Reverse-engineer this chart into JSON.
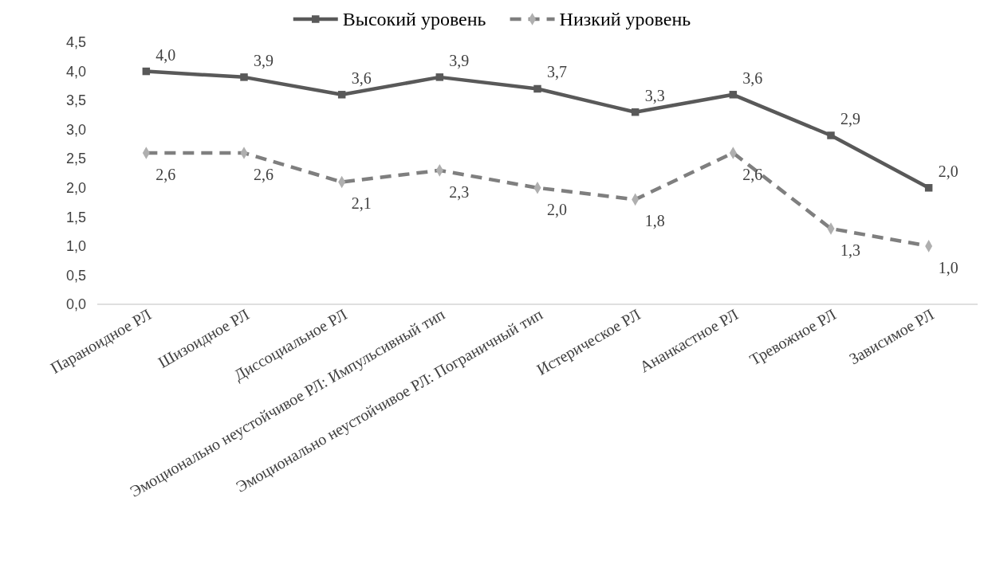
{
  "chart_data": {
    "type": "line",
    "categories": [
      "Параноидное РЛ",
      "Шизоидное РЛ",
      "Диссоциальное  РЛ",
      "Эмоционально неустойчивое РЛ: Импульсивный тип",
      "Эмоционально неустойчивое РЛ: Пограничный тип",
      "Истерическое РЛ",
      "Ананкастное РЛ",
      "Тревожное РЛ",
      "Зависимое РЛ"
    ],
    "series": [
      {
        "name": "Высокий уровень",
        "color": "#595959",
        "marker": "square",
        "line_style": "solid",
        "values": [
          4.0,
          3.9,
          3.6,
          3.9,
          3.7,
          3.3,
          3.6,
          2.9,
          2.0
        ],
        "value_labels": [
          "4,0",
          "3,9",
          "3,6",
          "3,9",
          "3,7",
          "3,3",
          "3,6",
          "2,9",
          "2,0"
        ]
      },
      {
        "name": "Низкий уровень",
        "color": "#7f7f7f",
        "marker": "diamond",
        "line_style": "dashed",
        "values": [
          2.6,
          2.6,
          2.1,
          2.3,
          2.0,
          1.8,
          2.6,
          1.3,
          1.0
        ],
        "value_labels": [
          "2,6",
          "2,6",
          "2,1",
          "2,3",
          "2,0",
          "1,8",
          "2,6",
          "1,3",
          "1,0"
        ]
      }
    ],
    "ylim": [
      0,
      4.5
    ],
    "yticks": [
      {
        "value": 0,
        "label": "0,0"
      },
      {
        "value": 0.5,
        "label": "0,5"
      },
      {
        "value": 1,
        "label": "1,0"
      },
      {
        "value": 1.5,
        "label": "1,5"
      },
      {
        "value": 2,
        "label": "2,0"
      },
      {
        "value": 2.5,
        "label": "2,5"
      },
      {
        "value": 3,
        "label": "3,0"
      },
      {
        "value": 3.5,
        "label": "3,5"
      },
      {
        "value": 4,
        "label": "4,0"
      },
      {
        "value": 4.5,
        "label": "4,5"
      }
    ],
    "grid": false,
    "legend": "top"
  }
}
